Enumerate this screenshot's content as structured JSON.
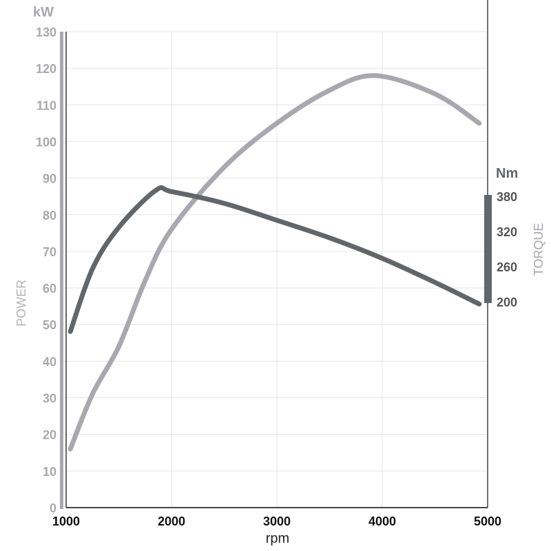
{
  "chart_data": {
    "type": "line",
    "title": "",
    "xlabel": "rpm",
    "xlim": [
      1000,
      5000
    ],
    "xticks": [
      1000,
      2000,
      3000,
      4000,
      5000
    ],
    "y_left": {
      "unit": "kW",
      "label": "POWER",
      "lim": [
        0,
        130
      ],
      "ticks": [
        0,
        10,
        20,
        30,
        40,
        50,
        60,
        70,
        80,
        90,
        100,
        110,
        120,
        130
      ]
    },
    "y_right": {
      "unit": "Nm",
      "label": "TORQUE",
      "lim": [
        200,
        380
      ],
      "ticks": [
        200,
        260,
        320,
        380
      ]
    },
    "grid": true,
    "series": [
      {
        "name": "POWER",
        "axis": "left",
        "color": "#a9a8ae",
        "x": [
          1040,
          1250,
          1500,
          1750,
          2000,
          2500,
          3000,
          3500,
          3930,
          4500,
          4920
        ],
        "y": [
          16,
          31,
          44,
          62,
          76,
          93,
          105,
          114,
          118,
          113,
          105
        ]
      },
      {
        "name": "TORQUE",
        "axis": "right",
        "color": "#636669",
        "x": [
          1040,
          1250,
          1500,
          1850,
          2000,
          2500,
          3000,
          3500,
          4000,
          4500,
          4920
        ],
        "y": [
          149,
          256,
          327,
          390,
          388,
          368,
          339,
          309,
          274,
          233,
          196
        ]
      }
    ]
  }
}
